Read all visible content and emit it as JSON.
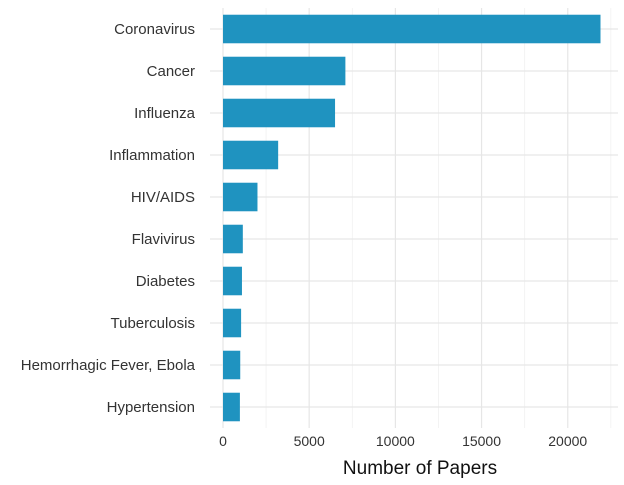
{
  "chart_data": {
    "type": "bar",
    "orientation": "horizontal",
    "categories": [
      "Coronavirus",
      "Cancer",
      "Influenza",
      "Inflammation",
      "HIV/AIDS",
      "Flavivirus",
      "Diabetes",
      "Tuberculosis",
      "Hemorrhagic Fever, Ebola",
      "Hypertension"
    ],
    "values": [
      21900,
      7100,
      6500,
      3200,
      2000,
      1150,
      1100,
      1050,
      1000,
      980
    ],
    "xlabel": "Number of Papers",
    "ylabel": "",
    "xlim": [
      0,
      22600
    ],
    "xticks": [
      0,
      5000,
      10000,
      15000,
      20000
    ],
    "xtick_labels": [
      "0",
      "5000",
      "10000",
      "15000",
      "20000"
    ],
    "grid": true,
    "bar_color": "#1f93c0"
  }
}
